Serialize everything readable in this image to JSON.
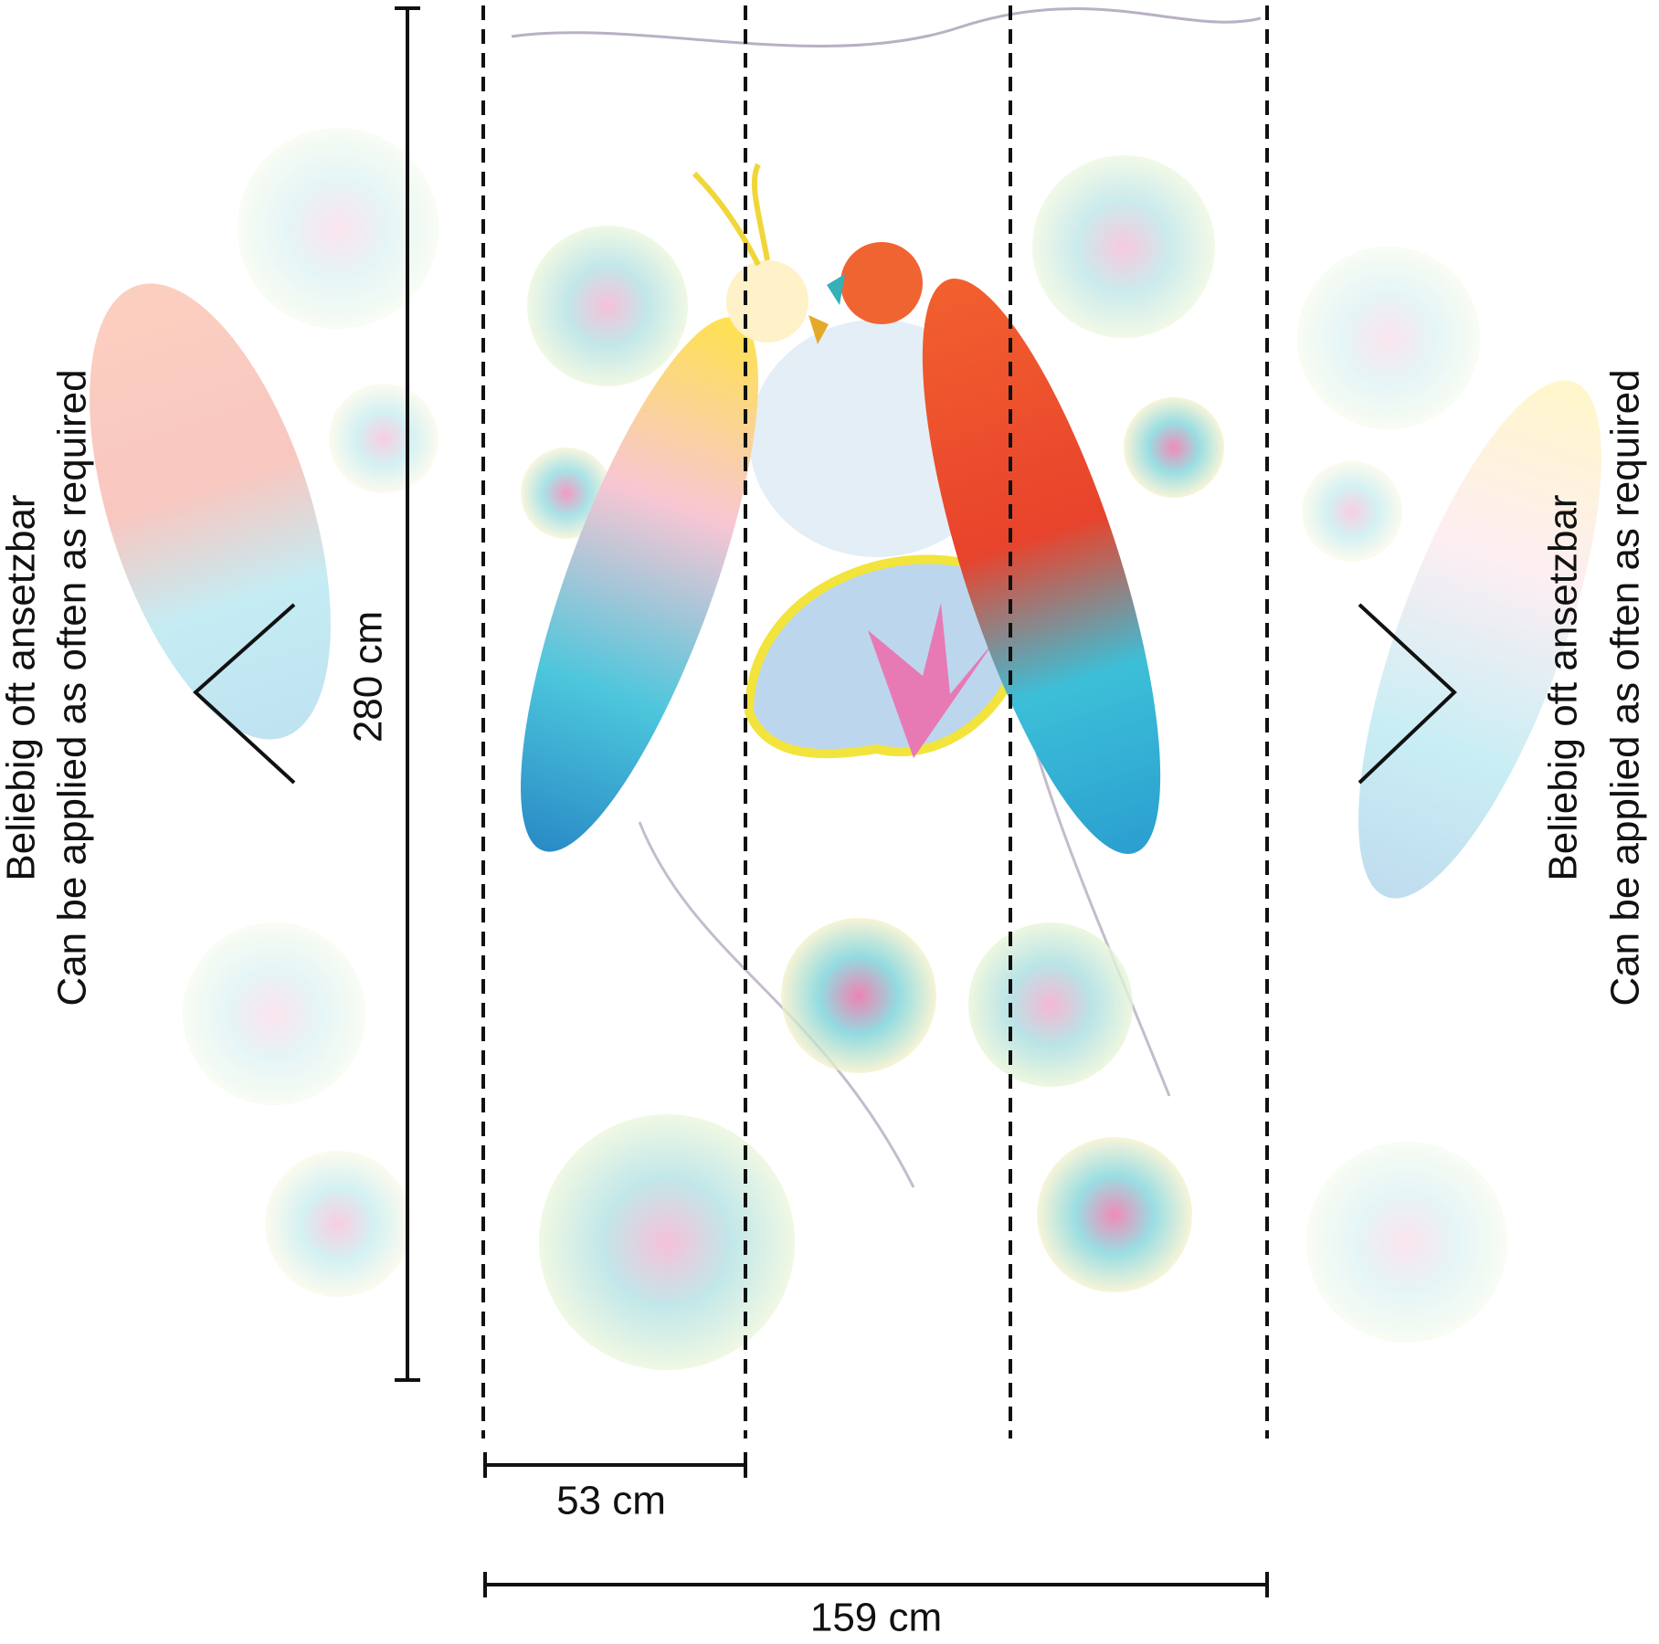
{
  "dimensions": {
    "height": "280 cm",
    "panel_width": "53 cm",
    "total_width": "159 cm"
  },
  "notes": {
    "german": "Beliebig oft ansetzbar",
    "english": "Can be applied as often as required"
  }
}
